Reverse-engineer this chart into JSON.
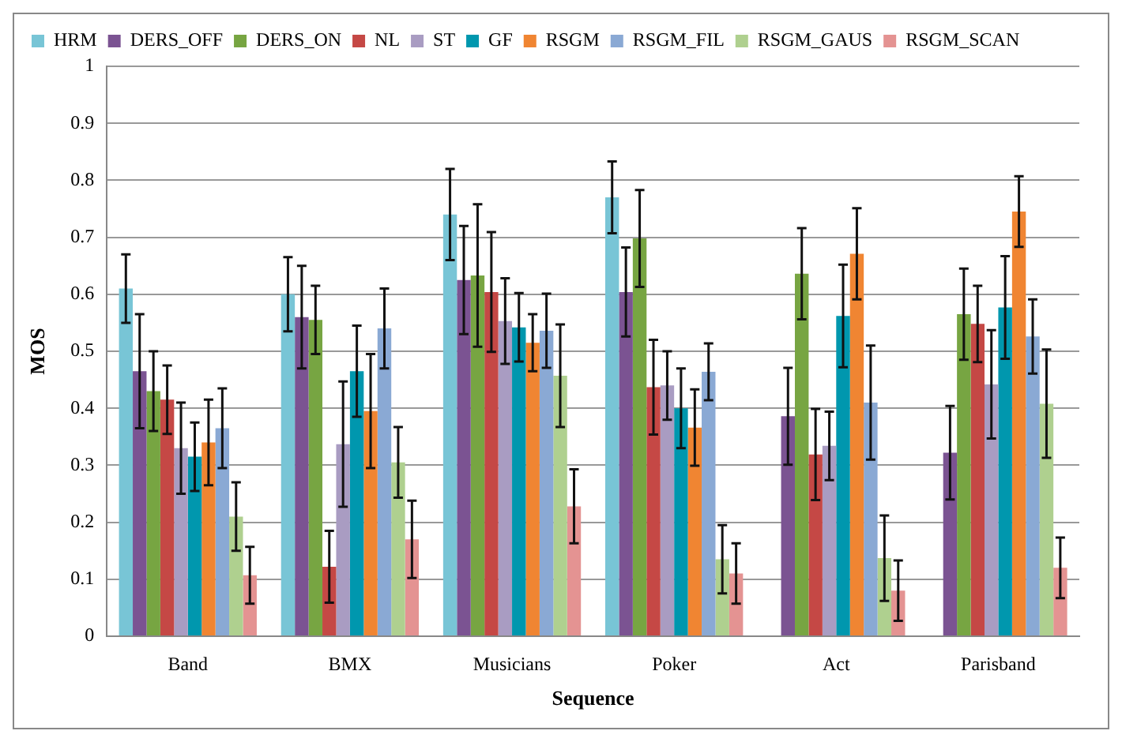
{
  "chart_data": {
    "type": "bar",
    "xlabel": "Sequence",
    "ylabel": "MOS",
    "categories": [
      "Band",
      "BMX",
      "Musicians",
      "Poker",
      "Act",
      "Parisband"
    ],
    "ylim": [
      0,
      1
    ],
    "yticks": [
      0,
      0.1,
      0.2,
      0.3,
      0.4,
      0.5,
      0.6,
      0.7,
      0.8,
      0.9,
      1
    ],
    "grid": "y",
    "legend": "top",
    "series": [
      {
        "name": "HRM",
        "color": "#78c5d6",
        "values": [
          0.61,
          0.6,
          0.74,
          0.77,
          null,
          null
        ],
        "errors": [
          0.06,
          0.065,
          0.08,
          0.063,
          null,
          null
        ]
      },
      {
        "name": "DERS_OFF",
        "color": "#7b5392",
        "values": [
          0.465,
          0.56,
          0.625,
          0.604,
          0.386,
          0.322
        ],
        "errors": [
          0.1,
          0.09,
          0.095,
          0.078,
          0.085,
          0.082
        ]
      },
      {
        "name": "DERS_ON",
        "color": "#77a542",
        "values": [
          0.43,
          0.555,
          0.633,
          0.698,
          0.636,
          0.565
        ],
        "errors": [
          0.07,
          0.06,
          0.125,
          0.085,
          0.08,
          0.08
        ]
      },
      {
        "name": "NL",
        "color": "#c54845",
        "values": [
          0.415,
          0.122,
          0.604,
          0.437,
          0.319,
          0.548
        ],
        "errors": [
          0.06,
          0.063,
          0.105,
          0.083,
          0.08,
          0.067
        ]
      },
      {
        "name": "ST",
        "color": "#a99cc2",
        "values": [
          0.33,
          0.337,
          0.553,
          0.44,
          0.334,
          0.442
        ],
        "errors": [
          0.08,
          0.11,
          0.075,
          0.06,
          0.06,
          0.095
        ]
      },
      {
        "name": "GF",
        "color": "#0097ae",
        "values": [
          0.315,
          0.465,
          0.542,
          0.4,
          0.562,
          0.577
        ],
        "errors": [
          0.06,
          0.08,
          0.06,
          0.07,
          0.09,
          0.09
        ]
      },
      {
        "name": "RSGM",
        "color": "#f08532",
        "values": [
          0.34,
          0.395,
          0.515,
          0.366,
          0.671,
          0.745
        ],
        "errors": [
          0.075,
          0.1,
          0.05,
          0.067,
          0.08,
          0.062
        ]
      },
      {
        "name": "RSGM_FIL",
        "color": "#8aa9d4",
        "values": [
          0.365,
          0.54,
          0.536,
          0.464,
          0.41,
          0.526
        ],
        "errors": [
          0.07,
          0.07,
          0.065,
          0.05,
          0.1,
          0.065
        ]
      },
      {
        "name": "RSGM_GAUS",
        "color": "#afd08f",
        "values": [
          0.21,
          0.305,
          0.457,
          0.135,
          0.137,
          0.408
        ],
        "errors": [
          0.06,
          0.062,
          0.09,
          0.06,
          0.075,
          0.095
        ]
      },
      {
        "name": "RSGM_SCAN",
        "color": "#e49392",
        "values": [
          0.107,
          0.17,
          0.228,
          0.11,
          0.08,
          0.12
        ],
        "errors": [
          0.05,
          0.068,
          0.065,
          0.053,
          0.053,
          0.053
        ]
      }
    ]
  }
}
